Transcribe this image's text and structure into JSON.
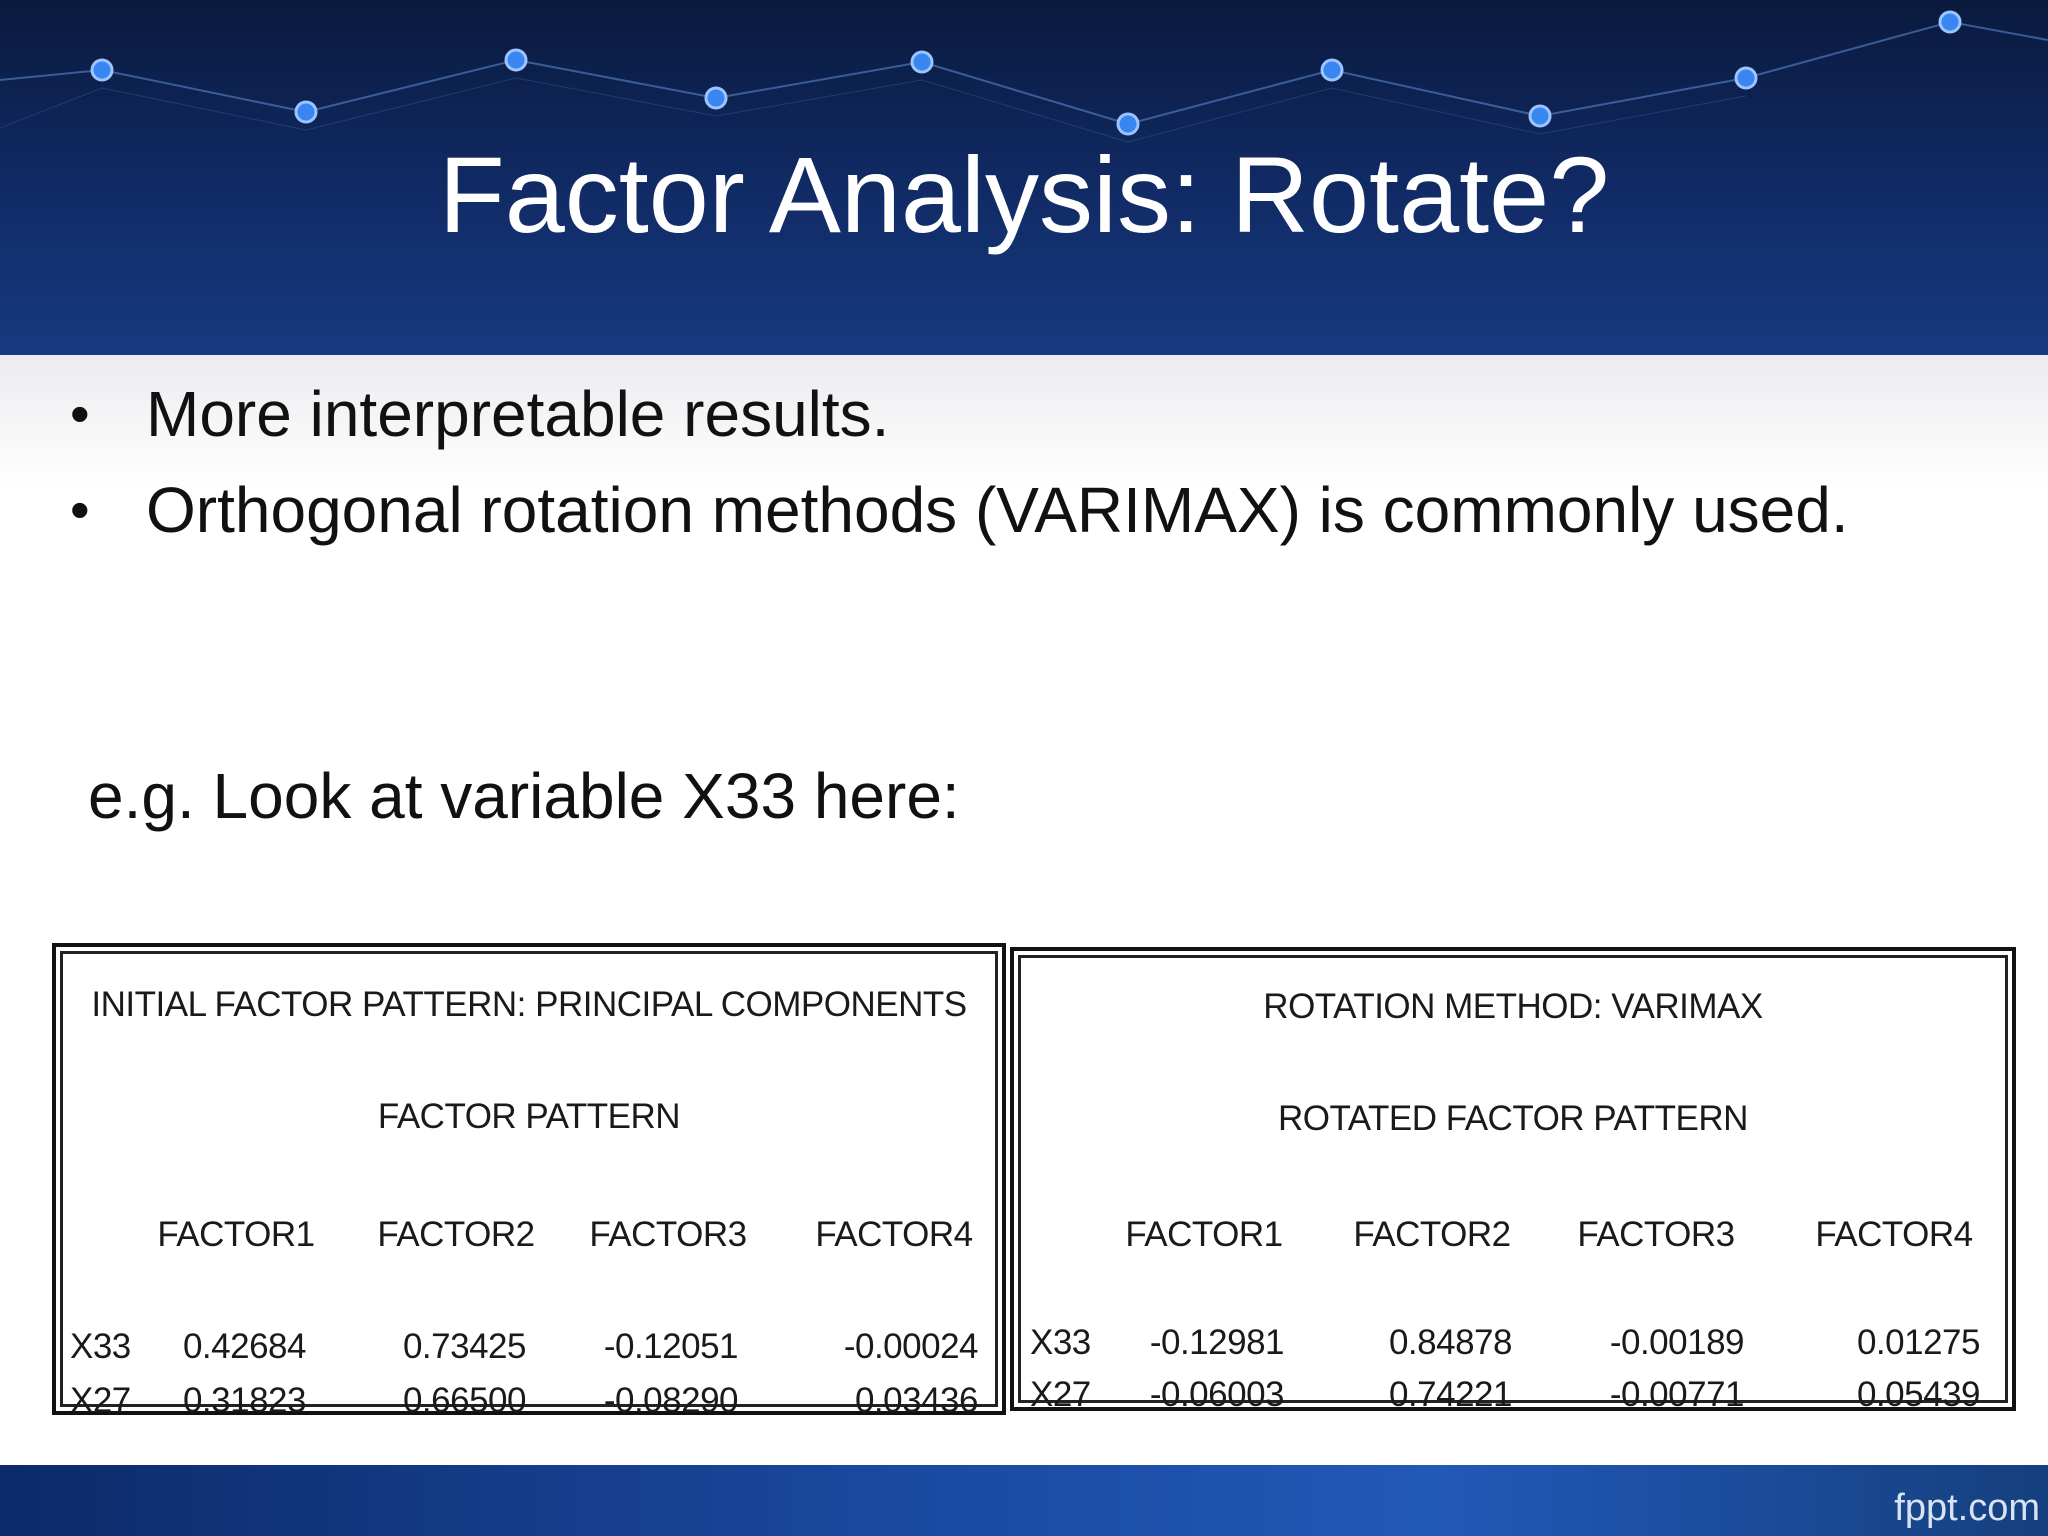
{
  "slide": {
    "title": "Factor Analysis: Rotate?",
    "bullets": [
      "More interpretable results.",
      "Orthogonal rotation methods (VARIMAX) is commonly used."
    ],
    "example_line": "e.g.  Look at variable X33 here:",
    "bullet_glyph": "•"
  },
  "tables": [
    {
      "title": "INITIAL FACTOR PATTERN:  PRINCIPAL COMPONENTS",
      "subtitle": "FACTOR PATTERN",
      "columns": [
        "FACTOR1",
        "FACTOR2",
        "FACTOR3",
        "FACTOR4"
      ],
      "rows": [
        {
          "label": "X33",
          "values": [
            "0.42684",
            "0.73425",
            "-0.12051",
            "-0.00024"
          ]
        },
        {
          "label": "X27",
          "values": [
            "0.31823",
            "0.66500",
            "-0.08290",
            "0.03436"
          ]
        }
      ]
    },
    {
      "title": "ROTATION METHOD:  VARIMAX",
      "subtitle": "ROTATED FACTOR PATTERN",
      "columns": [
        "FACTOR1",
        "FACTOR2",
        "FACTOR3",
        "FACTOR4"
      ],
      "rows": [
        {
          "label": "X33",
          "values": [
            "-0.12981",
            "0.84878",
            "-0.00189",
            "0.01275"
          ]
        },
        {
          "label": "X27",
          "values": [
            "-0.06003",
            "0.74221",
            "-0.00771",
            "0.05439"
          ]
        }
      ]
    }
  ],
  "footer": {
    "brand": "fppt.com"
  },
  "colors": {
    "header_bg": "#112b66",
    "node": "#3a86f0",
    "footer_bg": "#1a4aa0"
  }
}
